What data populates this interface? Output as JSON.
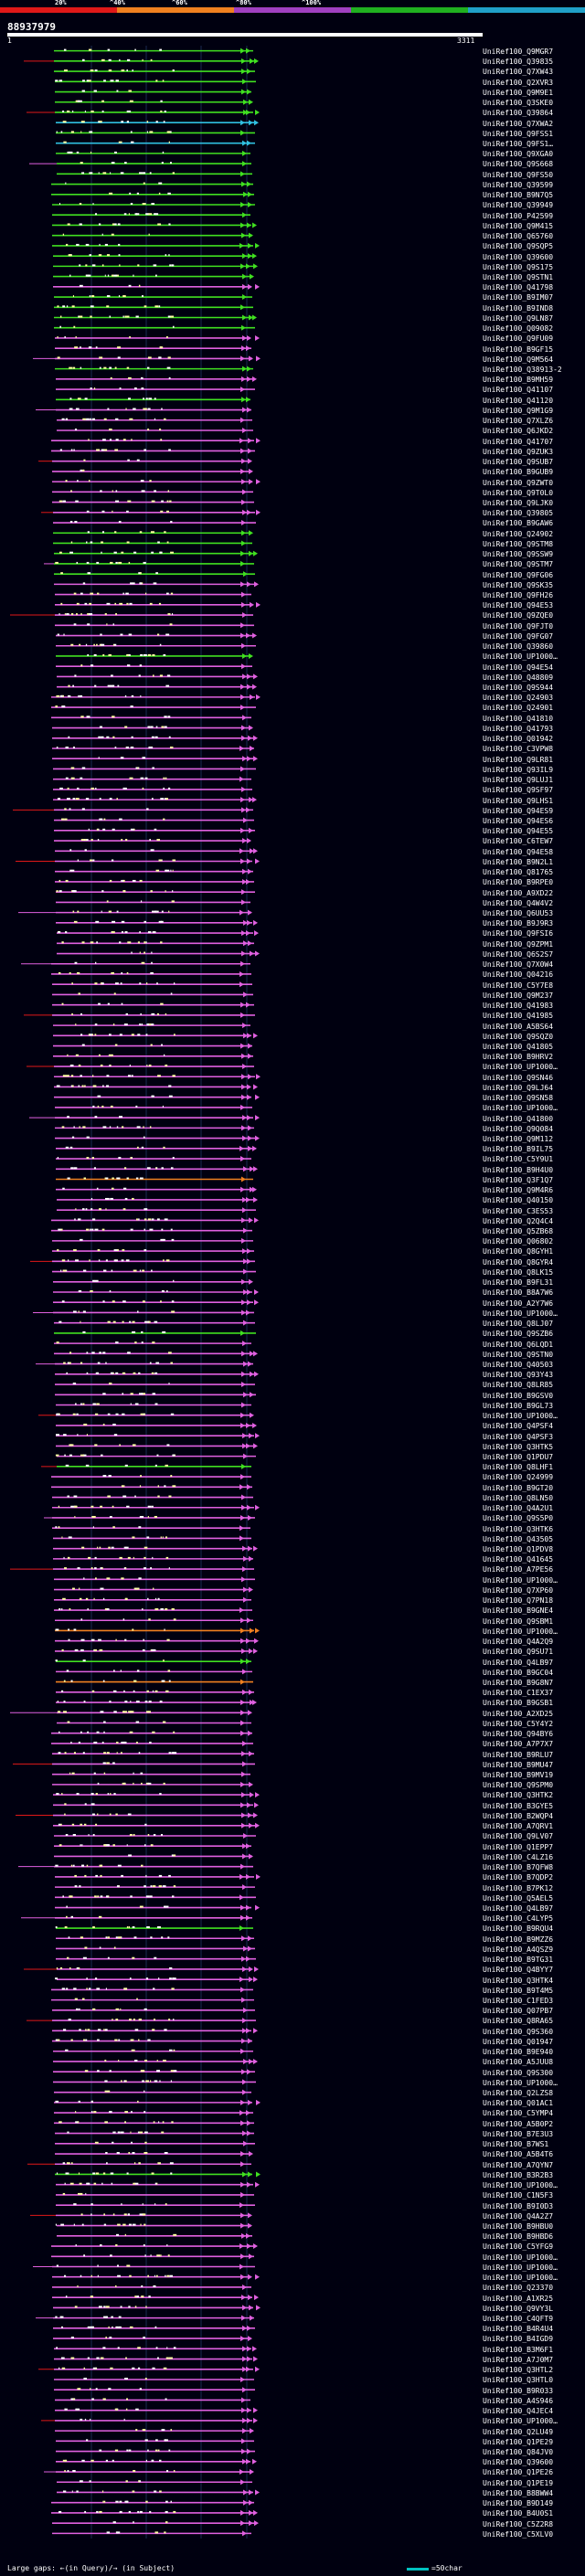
{
  "query": {
    "id": "88937979",
    "start": "1",
    "end": "3311"
  },
  "scale": {
    "labels": [
      "20%",
      "^40%",
      "^60%",
      "^80%",
      "^100%"
    ],
    "segments": [
      {
        "color": "#e01818"
      },
      {
        "color": "#f08020"
      },
      {
        "color": "#a040c0"
      },
      {
        "color": "#20b020"
      },
      {
        "color": "#20a0c8"
      }
    ]
  },
  "colors": {
    "bg": "#000010",
    "grid": "#1a2a50",
    "magenta": "#e060e0",
    "green": "#40e020",
    "cyan": "#30c0e0",
    "orange": "#f08020",
    "red": "#e01818",
    "dot": "#ffffa0"
  },
  "hits": [
    {
      "label": "UniRef100_Q9MGR7",
      "cls": "green"
    },
    {
      "label": "UniRef100_Q39835",
      "cls": "green"
    },
    {
      "label": "UniRef100_Q7XW43",
      "cls": "green"
    },
    {
      "label": "UniRef100_Q2XVR3",
      "cls": "green"
    },
    {
      "label": "UniRef100_Q9M9E1",
      "cls": "green"
    },
    {
      "label": "UniRef100_Q3SKE0",
      "cls": "green"
    },
    {
      "label": "UniRef100_Q39864",
      "cls": "green"
    },
    {
      "label": "UniRef100_Q7XWA2",
      "cls": "cyan"
    },
    {
      "label": "UniRef100_Q9FSS1",
      "cls": "green"
    },
    {
      "label": "UniRef100_Q9FS1…",
      "cls": "cyan"
    },
    {
      "label": "UniRef100_Q9XGA0",
      "cls": "green"
    },
    {
      "label": "UniRef100_Q9S668",
      "cls": "green"
    },
    {
      "label": "UniRef100_Q9FS50",
      "cls": "green"
    },
    {
      "label": "UniRef100_Q39599",
      "cls": "green"
    },
    {
      "label": "UniRef100_B9N7Q5",
      "cls": "green"
    },
    {
      "label": "UniRef100_Q39949",
      "cls": "green"
    },
    {
      "label": "UniRef100_P42599",
      "cls": "green"
    },
    {
      "label": "UniRef100_Q9M415",
      "cls": "green"
    },
    {
      "label": "UniRef100_Q65760",
      "cls": "green"
    },
    {
      "label": "UniRef100_Q9SQP5",
      "cls": "green"
    },
    {
      "label": "UniRef100_Q39600",
      "cls": "green"
    },
    {
      "label": "UniRef100_Q9S175",
      "cls": "green"
    },
    {
      "label": "UniRef100_Q9STN1",
      "cls": "green"
    },
    {
      "label": "UniRef100_Q41798",
      "cls": "magenta"
    },
    {
      "label": "UniRef100_B9IM07",
      "cls": "green"
    },
    {
      "label": "UniRef100_B9IND8",
      "cls": "green"
    },
    {
      "label": "UniRef100_Q9LN87",
      "cls": "green"
    },
    {
      "label": "UniRef100_Q09082",
      "cls": "green"
    },
    {
      "label": "UniRef100_Q9FU09",
      "cls": "magenta"
    },
    {
      "label": "UniRef100_B9GF15",
      "cls": "magenta"
    },
    {
      "label": "UniRef100_Q9M564",
      "cls": "magenta"
    },
    {
      "label": "UniRef100_Q38913-2",
      "cls": "green"
    },
    {
      "label": "UniRef100_B9MH59",
      "cls": "magenta"
    },
    {
      "label": "UniRef100_Q41107",
      "cls": "magenta"
    },
    {
      "label": "UniRef100_Q41120",
      "cls": "green"
    },
    {
      "label": "UniRef100_Q9M1G9",
      "cls": "magenta"
    },
    {
      "label": "UniRef100_Q7XLZ6",
      "cls": "magenta"
    },
    {
      "label": "UniRef100_Q6JKD2",
      "cls": "magenta"
    },
    {
      "label": "UniRef100_Q41707",
      "cls": "magenta"
    },
    {
      "label": "UniRef100_Q9ZUK3",
      "cls": "magenta"
    },
    {
      "label": "UniRef100_Q9SUB7",
      "cls": "magenta"
    },
    {
      "label": "UniRef100_B9GUB9",
      "cls": "magenta"
    },
    {
      "label": "UniRef100_Q9ZWT0",
      "cls": "magenta"
    },
    {
      "label": "UniRef100_Q9T0L0",
      "cls": "magenta"
    },
    {
      "label": "UniRef100_Q9LJK0",
      "cls": "magenta"
    },
    {
      "label": "UniRef100_Q39805",
      "cls": "magenta"
    },
    {
      "label": "UniRef100_B9GAW6",
      "cls": "magenta"
    },
    {
      "label": "UniRef100_Q24902",
      "cls": "green"
    },
    {
      "label": "UniRef100_Q9STM8",
      "cls": "green"
    },
    {
      "label": "UniRef100_Q9SSW9",
      "cls": "green"
    },
    {
      "label": "UniRef100_Q9STM7",
      "cls": "green"
    },
    {
      "label": "UniRef100_Q9FG06",
      "cls": "green"
    },
    {
      "label": "UniRef100_Q9SK35",
      "cls": "magenta"
    },
    {
      "label": "UniRef100_Q9FH26",
      "cls": "magenta"
    },
    {
      "label": "UniRef100_Q94E53",
      "cls": "magenta"
    },
    {
      "label": "UniRef100_Q9ZQE0",
      "cls": "magenta"
    },
    {
      "label": "UniRef100_Q9FJT0",
      "cls": "magenta"
    },
    {
      "label": "UniRef100_Q9FG07",
      "cls": "magenta"
    },
    {
      "label": "UniRef100_Q39860",
      "cls": "magenta"
    },
    {
      "label": "UniRef100_UP1000…",
      "cls": "green"
    },
    {
      "label": "UniRef100_Q94E54",
      "cls": "magenta"
    },
    {
      "label": "UniRef100_Q48809",
      "cls": "magenta"
    },
    {
      "label": "UniRef100_Q9S944",
      "cls": "magenta"
    },
    {
      "label": "UniRef100_Q24903",
      "cls": "magenta"
    },
    {
      "label": "UniRef100_Q24901",
      "cls": "magenta"
    },
    {
      "label": "UniRef100_Q41810",
      "cls": "magenta"
    },
    {
      "label": "UniRef100_Q41793",
      "cls": "magenta"
    },
    {
      "label": "UniRef100_Q01942",
      "cls": "magenta"
    },
    {
      "label": "UniRef100_C3VPW8",
      "cls": "magenta"
    },
    {
      "label": "UniRef100_Q9LR81",
      "cls": "magenta"
    },
    {
      "label": "UniRef100_Q93IL9",
      "cls": "magenta"
    },
    {
      "label": "UniRef100_Q9LUJ1",
      "cls": "magenta"
    },
    {
      "label": "UniRef100_Q9SF97",
      "cls": "magenta"
    },
    {
      "label": "UniRef100_Q9LHS1",
      "cls": "magenta"
    },
    {
      "label": "UniRef100_Q94ES9",
      "cls": "magenta"
    },
    {
      "label": "UniRef100_Q94ES6",
      "cls": "magenta"
    },
    {
      "label": "UniRef100_Q94E55",
      "cls": "magenta"
    },
    {
      "label": "UniRef100_C6TEW7",
      "cls": "magenta"
    },
    {
      "label": "UniRef100_Q94E58",
      "cls": "magenta"
    },
    {
      "label": "UniRef100_B9N2L1",
      "cls": "magenta"
    },
    {
      "label": "UniRef100_Q81765",
      "cls": "magenta"
    },
    {
      "label": "UniRef100_B9RPE0",
      "cls": "magenta"
    },
    {
      "label": "UniRef100_A9XD22",
      "cls": "magenta"
    },
    {
      "label": "UniRef100_Q4W4V2",
      "cls": "magenta"
    },
    {
      "label": "UniRef100_Q6UU53",
      "cls": "magenta"
    },
    {
      "label": "UniRef100_B9J9R3",
      "cls": "magenta"
    },
    {
      "label": "UniRef100_Q9FSI6",
      "cls": "magenta"
    },
    {
      "label": "UniRef100_Q9ZPM1",
      "cls": "magenta"
    },
    {
      "label": "UniRef100_Q6S2S7",
      "cls": "magenta"
    },
    {
      "label": "UniRef100_Q7X0W4",
      "cls": "magenta"
    },
    {
      "label": "UniRef100_Q04216",
      "cls": "magenta"
    },
    {
      "label": "UniRef100_C5Y7E8",
      "cls": "magenta"
    },
    {
      "label": "UniRef100_Q9M237",
      "cls": "magenta"
    },
    {
      "label": "UniRef100_Q41983",
      "cls": "magenta"
    },
    {
      "label": "UniRef100_Q41985",
      "cls": "magenta"
    },
    {
      "label": "UniRef100_A5BS64",
      "cls": "magenta"
    },
    {
      "label": "UniRef100_Q9SQZ0",
      "cls": "magenta"
    },
    {
      "label": "UniRef100_Q41805",
      "cls": "magenta"
    },
    {
      "label": "UniRef100_B9HRV2",
      "cls": "magenta"
    },
    {
      "label": "UniRef100_UP1000…",
      "cls": "magenta"
    },
    {
      "label": "UniRef100_Q9SN46",
      "cls": "magenta"
    },
    {
      "label": "UniRef100_Q9LJ64",
      "cls": "magenta"
    },
    {
      "label": "UniRef100_Q9SN58",
      "cls": "magenta"
    },
    {
      "label": "UniRef100_UP1000…",
      "cls": "magenta"
    },
    {
      "label": "UniRef100_Q41800",
      "cls": "magenta"
    },
    {
      "label": "UniRef100_Q9Q084",
      "cls": "magenta"
    },
    {
      "label": "UniRef100_Q9M112",
      "cls": "magenta"
    },
    {
      "label": "UniRef100_B9IL75",
      "cls": "magenta"
    },
    {
      "label": "UniRef100_C5Y9U1",
      "cls": "magenta"
    },
    {
      "label": "UniRef100_B9H4U0",
      "cls": "magenta"
    },
    {
      "label": "UniRef100_Q3F1Q7",
      "cls": "orange"
    },
    {
      "label": "UniRef100_Q9M4R6",
      "cls": "magenta"
    },
    {
      "label": "UniRef100_Q40150",
      "cls": "magenta"
    },
    {
      "label": "UniRef100_C3ES53",
      "cls": "magenta"
    },
    {
      "label": "UniRef100_Q2Q4C4",
      "cls": "magenta"
    },
    {
      "label": "UniRef100_Q5ZB68",
      "cls": "magenta"
    },
    {
      "label": "UniRef100_Q06802",
      "cls": "magenta"
    },
    {
      "label": "UniRef100_Q8GYH1",
      "cls": "magenta"
    },
    {
      "label": "UniRef100_Q8GYR4",
      "cls": "magenta"
    },
    {
      "label": "UniRef100_Q8LK15",
      "cls": "magenta"
    },
    {
      "label": "UniRef100_B9FL31",
      "cls": "magenta"
    },
    {
      "label": "UniRef100_B8A7W6",
      "cls": "magenta"
    },
    {
      "label": "UniRef100_A2Y7W6",
      "cls": "magenta"
    },
    {
      "label": "UniRef100_UP1000…",
      "cls": "magenta"
    },
    {
      "label": "UniRef100_Q8LJ07",
      "cls": "magenta"
    },
    {
      "label": "UniRef100_Q9SZB6",
      "cls": "green"
    },
    {
      "label": "UniRef100_Q6LQD1",
      "cls": "magenta"
    },
    {
      "label": "UniRef100_Q9STN0",
      "cls": "magenta"
    },
    {
      "label": "UniRef100_Q40503",
      "cls": "magenta"
    },
    {
      "label": "UniRef100_Q93Y43",
      "cls": "magenta"
    },
    {
      "label": "UniRef100_Q8LR85",
      "cls": "magenta"
    },
    {
      "label": "UniRef100_B9GSV0",
      "cls": "magenta"
    },
    {
      "label": "UniRef100_B9GL73",
      "cls": "magenta"
    },
    {
      "label": "UniRef100_UP1000…",
      "cls": "magenta"
    },
    {
      "label": "UniRef100_Q4PSF4",
      "cls": "magenta"
    },
    {
      "label": "UniRef100_Q4PSF3",
      "cls": "magenta"
    },
    {
      "label": "UniRef100_Q3HTK5",
      "cls": "magenta"
    },
    {
      "label": "UniRef100_Q1PDU7",
      "cls": "magenta"
    },
    {
      "label": "UniRef100_Q8LHF1",
      "cls": "green"
    },
    {
      "label": "UniRef100_Q24999",
      "cls": "magenta"
    },
    {
      "label": "UniRef100_B9GT20",
      "cls": "magenta"
    },
    {
      "label": "UniRef100_Q8LN50",
      "cls": "magenta"
    },
    {
      "label": "UniRef100_Q4A2U1",
      "cls": "magenta"
    },
    {
      "label": "UniRef100_Q9S5P0",
      "cls": "magenta"
    },
    {
      "label": "UniRef100_Q3HTK6",
      "cls": "magenta"
    },
    {
      "label": "UniRef100_Q43505",
      "cls": "magenta"
    },
    {
      "label": "UniRef100_Q1PDV8",
      "cls": "magenta"
    },
    {
      "label": "UniRef100_Q41645",
      "cls": "magenta"
    },
    {
      "label": "UniRef100_A7PE56",
      "cls": "magenta"
    },
    {
      "label": "UniRef100_UP1000…",
      "cls": "magenta"
    },
    {
      "label": "UniRef100_Q7XP60",
      "cls": "magenta"
    },
    {
      "label": "UniRef100_Q7PN18",
      "cls": "magenta"
    },
    {
      "label": "UniRef100_B9GNE4",
      "cls": "magenta"
    },
    {
      "label": "UniRef100_Q9SBM1",
      "cls": "magenta"
    },
    {
      "label": "UniRef100_UP1000…",
      "cls": "orange"
    },
    {
      "label": "UniRef100_Q4A2Q9",
      "cls": "magenta"
    },
    {
      "label": "UniRef100_Q9SU71",
      "cls": "magenta"
    },
    {
      "label": "UniRef100_Q4LB97",
      "cls": "green"
    },
    {
      "label": "UniRef100_B9GC04",
      "cls": "magenta"
    },
    {
      "label": "UniRef100_B9G8N7",
      "cls": "orange"
    },
    {
      "label": "UniRef100_C1EX37",
      "cls": "magenta"
    },
    {
      "label": "UniRef100_B9GSB1",
      "cls": "magenta"
    },
    {
      "label": "UniRef100_A2XD25",
      "cls": "magenta"
    },
    {
      "label": "UniRef100_C5Y4Y2",
      "cls": "magenta"
    },
    {
      "label": "UniRef100_Q94BY6",
      "cls": "magenta"
    },
    {
      "label": "UniRef100_A7P7X7",
      "cls": "magenta"
    },
    {
      "label": "UniRef100_B9RLU7",
      "cls": "magenta"
    },
    {
      "label": "UniRef100_B9MU47",
      "cls": "magenta"
    },
    {
      "label": "UniRef100_B9MV19",
      "cls": "magenta"
    },
    {
      "label": "UniRef100_Q9SPM0",
      "cls": "magenta"
    },
    {
      "label": "UniRef100_Q3HTK2",
      "cls": "magenta"
    },
    {
      "label": "UniRef100_B3GYE5",
      "cls": "magenta"
    },
    {
      "label": "UniRef100_B2WQP4",
      "cls": "magenta"
    },
    {
      "label": "UniRef100_A7QRV1",
      "cls": "magenta"
    },
    {
      "label": "UniRef100_Q9LV07",
      "cls": "magenta"
    },
    {
      "label": "UniRef100_Q1EPP7",
      "cls": "magenta"
    },
    {
      "label": "UniRef100_C4LZ16",
      "cls": "magenta"
    },
    {
      "label": "UniRef100_B7QFW8",
      "cls": "magenta"
    },
    {
      "label": "UniRef100_B7QDP2",
      "cls": "magenta"
    },
    {
      "label": "UniRef100_B7PK12",
      "cls": "magenta"
    },
    {
      "label": "UniRef100_Q5AEL5",
      "cls": "magenta"
    },
    {
      "label": "UniRef100_Q4LB97",
      "cls": "magenta"
    },
    {
      "label": "UniRef100_C4LYP5",
      "cls": "magenta"
    },
    {
      "label": "UniRef100_B9RQU4",
      "cls": "green"
    },
    {
      "label": "UniRef100_B9MZZ6",
      "cls": "magenta"
    },
    {
      "label": "UniRef100_A4QSZ9",
      "cls": "magenta"
    },
    {
      "label": "UniRef100_B9TG31",
      "cls": "magenta"
    },
    {
      "label": "UniRef100_Q4BYY7",
      "cls": "magenta"
    },
    {
      "label": "UniRef100_Q3HTK4",
      "cls": "magenta"
    },
    {
      "label": "UniRef100_B9T4M5",
      "cls": "magenta"
    },
    {
      "label": "UniRef100_C1FED3",
      "cls": "magenta"
    },
    {
      "label": "UniRef100_Q07PB7",
      "cls": "magenta"
    },
    {
      "label": "UniRef100_Q8RA65",
      "cls": "magenta"
    },
    {
      "label": "UniRef100_Q9S360",
      "cls": "magenta"
    },
    {
      "label": "UniRef100_Q01947",
      "cls": "magenta"
    },
    {
      "label": "UniRef100_B9E940",
      "cls": "magenta"
    },
    {
      "label": "UniRef100_A5JUU8",
      "cls": "magenta"
    },
    {
      "label": "UniRef100_Q9S300",
      "cls": "magenta"
    },
    {
      "label": "UniRef100_UP1000…",
      "cls": "magenta"
    },
    {
      "label": "UniRef100_Q2LZS8",
      "cls": "magenta"
    },
    {
      "label": "UniRef100_Q01AC1",
      "cls": "magenta"
    },
    {
      "label": "UniRef100_C5YMP4",
      "cls": "magenta"
    },
    {
      "label": "UniRef100_A5B0P2",
      "cls": "magenta"
    },
    {
      "label": "UniRef100_B7E3U3",
      "cls": "magenta"
    },
    {
      "label": "UniRef100_B7WS1",
      "cls": "magenta"
    },
    {
      "label": "UniRef100_A5B4T6",
      "cls": "magenta"
    },
    {
      "label": "UniRef100_A7QYN7",
      "cls": "magenta"
    },
    {
      "label": "UniRef100_B3R2B3",
      "cls": "green"
    },
    {
      "label": "UniRef100_UP1000…",
      "cls": "magenta"
    },
    {
      "label": "UniRef100_C1N5F3",
      "cls": "magenta"
    },
    {
      "label": "UniRef100_B9I0D3",
      "cls": "magenta"
    },
    {
      "label": "UniRef100_Q4A2Z7",
      "cls": "magenta"
    },
    {
      "label": "UniRef100_B9HBU0",
      "cls": "magenta"
    },
    {
      "label": "UniRef100_B9HBD6",
      "cls": "magenta"
    },
    {
      "label": "UniRef100_C5YFG9",
      "cls": "magenta"
    },
    {
      "label": "UniRef100_UP1000…",
      "cls": "magenta"
    },
    {
      "label": "UniRef100_UP1000…",
      "cls": "magenta"
    },
    {
      "label": "UniRef100_UP1000…",
      "cls": "magenta"
    },
    {
      "label": "UniRef100_Q23370",
      "cls": "magenta"
    },
    {
      "label": "UniRef100_A1XR25",
      "cls": "magenta"
    },
    {
      "label": "UniRef100_Q9VY3L",
      "cls": "magenta"
    },
    {
      "label": "UniRef100_C4QFT9",
      "cls": "magenta"
    },
    {
      "label": "UniRef100_B4R4U4",
      "cls": "magenta"
    },
    {
      "label": "UniRef100_B4IGD9",
      "cls": "magenta"
    },
    {
      "label": "UniRef100_B3M6F1",
      "cls": "magenta"
    },
    {
      "label": "UniRef100_A7J0M7",
      "cls": "magenta"
    },
    {
      "label": "UniRef100_Q3HTL2",
      "cls": "magenta"
    },
    {
      "label": "UniRef100_Q3HTL0",
      "cls": "magenta"
    },
    {
      "label": "UniRef100_B9R033",
      "cls": "magenta"
    },
    {
      "label": "UniRef100_A4S946",
      "cls": "magenta"
    },
    {
      "label": "UniRef100_Q4JEC4",
      "cls": "magenta"
    },
    {
      "label": "UniRef100_UP1000…",
      "cls": "magenta"
    },
    {
      "label": "UniRef100_Q2LU49",
      "cls": "magenta"
    },
    {
      "label": "UniRef100_Q1PE29",
      "cls": "magenta"
    },
    {
      "label": "UniRef100_Q84JV0",
      "cls": "magenta"
    },
    {
      "label": "UniRef100_Q39600",
      "cls": "magenta"
    },
    {
      "label": "UniRef100_Q1PE26",
      "cls": "magenta"
    },
    {
      "label": "UniRef100_Q1PE19",
      "cls": "magenta"
    },
    {
      "label": "UniRef100_B8BWW4",
      "cls": "magenta"
    },
    {
      "label": "UniRef100_B9D149",
      "cls": "magenta"
    },
    {
      "label": "UniRef100_B4U0S1",
      "cls": "magenta"
    },
    {
      "label": "UniRef100_C5Z2R8",
      "cls": "magenta"
    },
    {
      "label": "UniRef100_C5XLV0",
      "cls": "magenta"
    }
  ],
  "footer": {
    "legend": "Large gaps: ←(in Query)/→ (in Subject)",
    "scale_label": "=50char"
  }
}
